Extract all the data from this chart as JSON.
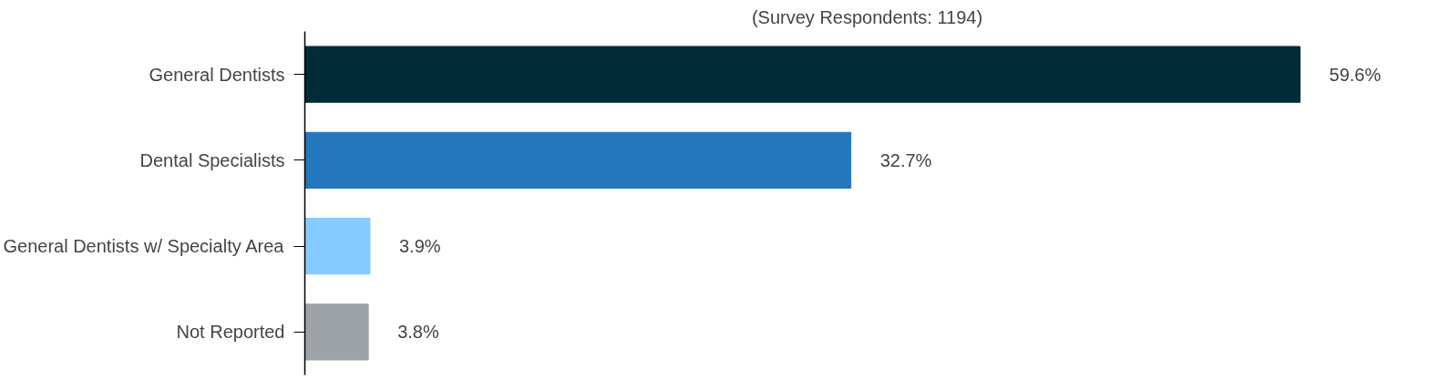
{
  "chart_data": {
    "type": "bar",
    "orientation": "horizontal",
    "subtitle": "(Survey Respondents: 1194)",
    "categories": [
      "General Dentists",
      "Dental Specialists",
      "General Dentists w/ Specialty Area",
      "Not Reported"
    ],
    "values": [
      59.6,
      32.7,
      3.9,
      3.8
    ],
    "colors": [
      "#022b3a",
      "#2476bd",
      "#85cbff",
      "#9ea3a8"
    ],
    "value_labels": [
      "59.6%",
      "32.7%",
      "3.9%",
      "3.8%"
    ]
  }
}
